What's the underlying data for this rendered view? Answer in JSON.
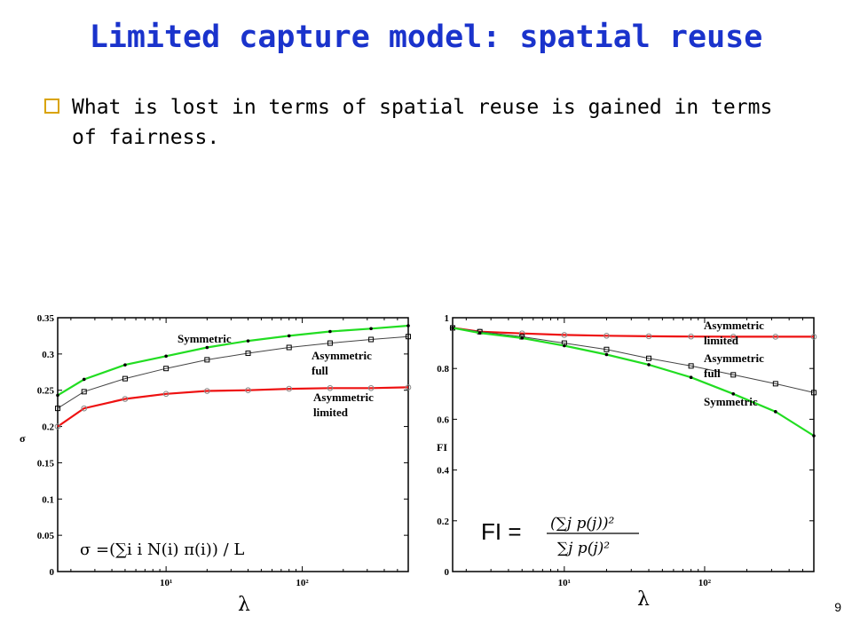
{
  "slide": {
    "title": "Limited capture model: spatial reuse",
    "bullet": "What is lost in terms of spatial reuse is gained in terms of fairness.",
    "page_number": "9"
  },
  "chart_data": [
    {
      "type": "line",
      "xscale": "log",
      "xlim": [
        1.6,
        600
      ],
      "ylim": [
        0,
        0.35
      ],
      "xticks": [
        10,
        100
      ],
      "xtick_labels": [
        "10¹",
        "10²"
      ],
      "yticks": [
        0,
        0.05,
        0.1,
        0.15,
        0.2,
        0.25,
        0.3,
        0.35
      ],
      "ytick_labels": [
        "0",
        "0.05",
        "0.1",
        "0.15",
        "0.2",
        "0.25",
        "0.3",
        "0.35"
      ],
      "ylabel": "σ",
      "xlabel": "λ",
      "formula": "σ =(∑i i N(i) π(i)) / L",
      "series": [
        {
          "name": "Symmetric",
          "color": "#22dd22",
          "marker": "dot",
          "x": [
            1.6,
            2.5,
            5,
            10,
            20,
            40,
            80,
            160,
            320,
            600
          ],
          "y": [
            0.243,
            0.265,
            0.285,
            0.297,
            0.309,
            0.318,
            0.325,
            0.331,
            0.335,
            0.339
          ]
        },
        {
          "name": "Asymmetric full",
          "color": "#444444",
          "marker": "square",
          "x": [
            1.6,
            2.5,
            5,
            10,
            20,
            40,
            80,
            160,
            320,
            600
          ],
          "y": [
            0.225,
            0.248,
            0.266,
            0.28,
            0.292,
            0.301,
            0.309,
            0.315,
            0.32,
            0.324
          ]
        },
        {
          "name": "Asymmetric limited",
          "color": "#ee1111",
          "marker": "circle",
          "x": [
            1.6,
            2.5,
            5,
            10,
            20,
            40,
            80,
            160,
            320,
            600
          ],
          "y": [
            0.2,
            0.225,
            0.238,
            0.245,
            0.249,
            0.25,
            0.252,
            0.253,
            0.253,
            0.254
          ]
        }
      ]
    },
    {
      "type": "line",
      "xscale": "log",
      "xlim": [
        1.6,
        600
      ],
      "ylim": [
        0,
        1
      ],
      "xticks": [
        10,
        100
      ],
      "xtick_labels": [
        "10¹",
        "10²"
      ],
      "yticks": [
        0,
        0.2,
        0.4,
        0.6,
        0.8,
        1
      ],
      "ytick_labels": [
        "0",
        "0.2",
        "0.4",
        "0.6",
        "0.8",
        "1"
      ],
      "ylabel": "FI",
      "xlabel": "λ",
      "formula_lhs": "FI =",
      "formula_num": "(∑j p(j))²",
      "formula_den": "∑j p(j)²",
      "series": [
        {
          "name": "Asymmetric limited",
          "color": "#ee1111",
          "marker": "circle",
          "x": [
            1.6,
            2.5,
            5,
            10,
            20,
            40,
            80,
            160,
            320,
            600
          ],
          "y": [
            0.96,
            0.945,
            0.938,
            0.932,
            0.929,
            0.927,
            0.926,
            0.925,
            0.925,
            0.925
          ]
        },
        {
          "name": "Asymmetric full",
          "color": "#444444",
          "marker": "square",
          "x": [
            1.6,
            2.5,
            5,
            10,
            20,
            40,
            80,
            160,
            320,
            600
          ],
          "y": [
            0.96,
            0.945,
            0.925,
            0.9,
            0.875,
            0.84,
            0.81,
            0.775,
            0.74,
            0.705
          ]
        },
        {
          "name": "Symmetric",
          "color": "#22dd22",
          "marker": "dot",
          "x": [
            1.6,
            2.5,
            5,
            10,
            20,
            40,
            80,
            160,
            320,
            600
          ],
          "y": [
            0.96,
            0.94,
            0.92,
            0.89,
            0.855,
            0.815,
            0.765,
            0.7,
            0.63,
            0.535
          ]
        }
      ]
    }
  ]
}
